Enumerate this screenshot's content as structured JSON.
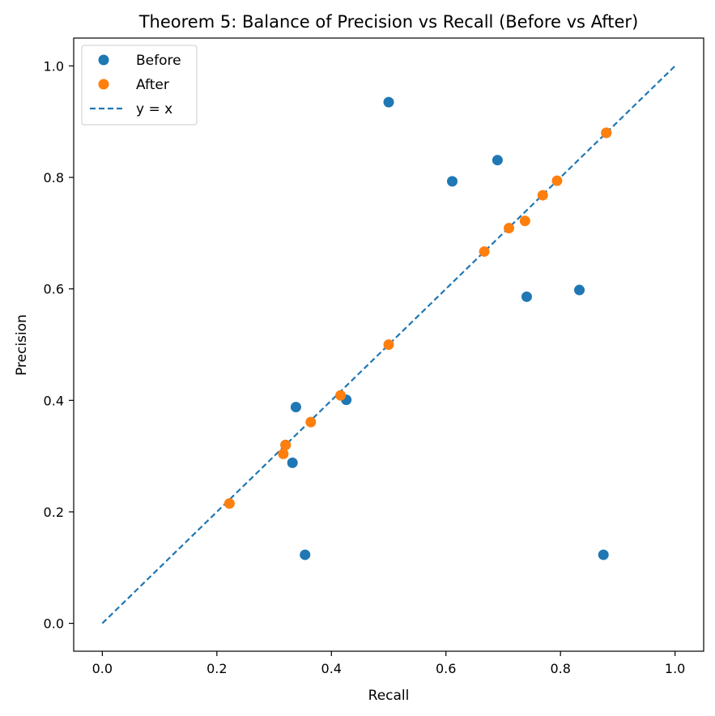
{
  "chart_data": {
    "type": "scatter",
    "title": "Theorem 5: Balance of Precision vs Recall (Before vs After)",
    "xlabel": "Recall",
    "ylabel": "Precision",
    "xlim": [
      -0.05,
      1.05
    ],
    "ylim": [
      -0.05,
      1.05
    ],
    "xticks": [
      "0.0",
      "0.2",
      "0.4",
      "0.6",
      "0.8",
      "1.0"
    ],
    "yticks": [
      "0.0",
      "0.2",
      "0.4",
      "0.6",
      "0.8",
      "1.0"
    ],
    "grid": false,
    "legend_position": "top-left",
    "series": [
      {
        "name": "Before",
        "kind": "scatter",
        "color": "#1f77b4",
        "points": [
          {
            "x": 0.5,
            "y": 0.935
          },
          {
            "x": 0.69,
            "y": 0.831
          },
          {
            "x": 0.611,
            "y": 0.793
          },
          {
            "x": 0.833,
            "y": 0.598
          },
          {
            "x": 0.741,
            "y": 0.586
          },
          {
            "x": 0.426,
            "y": 0.401
          },
          {
            "x": 0.338,
            "y": 0.388
          },
          {
            "x": 0.32,
            "y": 0.32
          },
          {
            "x": 0.332,
            "y": 0.288
          },
          {
            "x": 0.354,
            "y": 0.123
          },
          {
            "x": 0.875,
            "y": 0.123
          },
          {
            "x": 0.88,
            "y": 0.88
          }
        ]
      },
      {
        "name": "After",
        "kind": "scatter",
        "color": "#ff7f0e",
        "points": [
          {
            "x": 0.88,
            "y": 0.88
          },
          {
            "x": 0.794,
            "y": 0.794
          },
          {
            "x": 0.769,
            "y": 0.768
          },
          {
            "x": 0.738,
            "y": 0.722
          },
          {
            "x": 0.71,
            "y": 0.709
          },
          {
            "x": 0.667,
            "y": 0.667
          },
          {
            "x": 0.5,
            "y": 0.5
          },
          {
            "x": 0.416,
            "y": 0.409
          },
          {
            "x": 0.364,
            "y": 0.361
          },
          {
            "x": 0.32,
            "y": 0.32
          },
          {
            "x": 0.316,
            "y": 0.304
          },
          {
            "x": 0.222,
            "y": 0.215
          }
        ]
      },
      {
        "name": "y = x",
        "kind": "line",
        "style": "dashed",
        "color": "#1f77b4",
        "points": [
          {
            "x": 0.0,
            "y": 0.0
          },
          {
            "x": 1.0,
            "y": 1.0
          }
        ]
      }
    ]
  }
}
